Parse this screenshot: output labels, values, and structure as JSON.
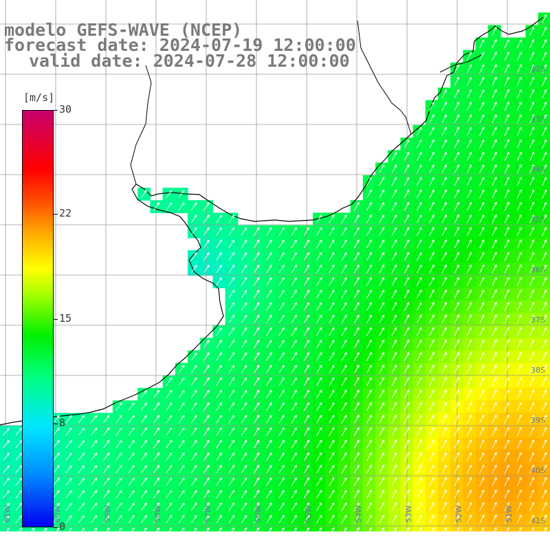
{
  "title": {
    "model": "modelo GEFS-WAVE (NCEP)",
    "forecast": "forecast date: 2024-07-19 12:00:00",
    "valid": "valid date: 2024-07-28 12:00:00"
  },
  "colorbar": {
    "unit": "[m/s]",
    "ticks": [
      "30",
      "22",
      "15",
      "8",
      "0"
    ],
    "range": [
      0,
      30
    ],
    "colors": [
      "#0000f0",
      "#0090ff",
      "#00e6ff",
      "#00ff80",
      "#00f000",
      "#aaff00",
      "#ffff00",
      "#ffb000",
      "#ff5000",
      "#ff0000",
      "#c8006e"
    ]
  },
  "map": {
    "lat_labels": [
      "32S",
      "33S",
      "34S",
      "35S",
      "36S",
      "37S",
      "38S",
      "39S",
      "40S",
      "41S"
    ],
    "lon_labels": [
      "61W",
      "60W",
      "59W",
      "58W",
      "57W",
      "56W",
      "55W",
      "54W",
      "53W",
      "52W",
      "51W"
    ],
    "land_color": "#ffffff",
    "grid_color": "#9a9a9a",
    "coast_color": "#000000",
    "arrow_color": "#ffffff",
    "wind_direction": "northeastward"
  }
}
